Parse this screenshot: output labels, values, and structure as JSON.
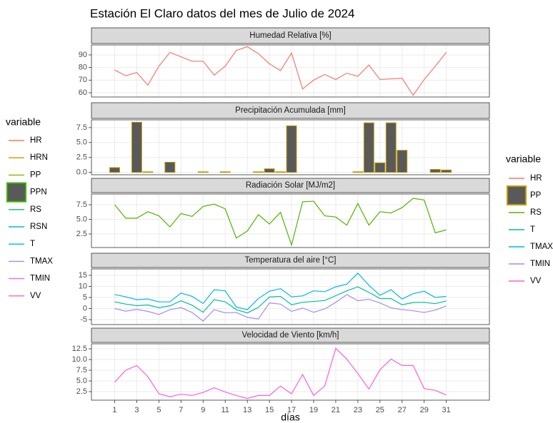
{
  "title": "Estación El Claro datos del mes de Julio de 2024",
  "legends": [
    {
      "title": "variable",
      "entries": [
        {
          "name": "HR",
          "color": "#F8766D",
          "key": "line"
        },
        {
          "name": "HRN",
          "color": "#D89000",
          "key": "line"
        },
        {
          "name": "PP",
          "color": "#A3A500",
          "key": "line"
        },
        {
          "name": "PPN",
          "color": "#39B600",
          "fill": "#595959",
          "key": "box"
        },
        {
          "name": "RS",
          "color": "#00BF7D",
          "key": "line"
        },
        {
          "name": "RSN",
          "color": "#00BFC4",
          "key": "line"
        },
        {
          "name": "T",
          "color": "#00B0F6",
          "key": "line"
        },
        {
          "name": "TMAX",
          "color": "#9590FF",
          "key": "line"
        },
        {
          "name": "TMIN",
          "color": "#E76BF3",
          "key": "line"
        },
        {
          "name": "VV",
          "color": "#FF62BC",
          "key": "line"
        }
      ]
    },
    {
      "title": "variable",
      "entries": [
        {
          "name": "HR",
          "color": "#F8766D",
          "key": "line"
        },
        {
          "name": "PP",
          "color": "#C49A00",
          "fill": "#595959",
          "key": "box"
        },
        {
          "name": "RS",
          "color": "#53B400",
          "key": "line"
        },
        {
          "name": "T",
          "color": "#00C094",
          "key": "line"
        },
        {
          "name": "TMAX",
          "color": "#00B6EB",
          "key": "line"
        },
        {
          "name": "TMIN",
          "color": "#A58AFF",
          "key": "line"
        },
        {
          "name": "VV",
          "color": "#FB61D7",
          "key": "line"
        }
      ]
    }
  ],
  "chart_data": [
    {
      "type": "line",
      "title": "Humedad Relativa [%]",
      "x": [
        1,
        2,
        3,
        4,
        5,
        6,
        7,
        8,
        9,
        10,
        11,
        12,
        13,
        14,
        15,
        16,
        17,
        18,
        19,
        20,
        21,
        22,
        23,
        24,
        25,
        26,
        27,
        28,
        29,
        30,
        31
      ],
      "xlim": [
        -1.1,
        34.9
      ],
      "xticks": [
        1,
        3,
        5,
        7,
        9,
        11,
        13,
        15,
        17,
        19,
        21,
        23,
        25,
        27,
        29,
        31
      ],
      "ylim": [
        56.6,
        97.9
      ],
      "yticks": [
        60,
        70,
        80,
        90
      ],
      "grid": true,
      "series": [
        {
          "name": "HR",
          "color": "#F8766D",
          "values": [
            78,
            73.5,
            76,
            66,
            81,
            92,
            88.5,
            85,
            85,
            74,
            81,
            93.5,
            96.5,
            91,
            83,
            77.5,
            91.5,
            63,
            70,
            74.5,
            70.5,
            75.5,
            73,
            82,
            70.5,
            71,
            71.5,
            58,
            70.5,
            81,
            92
          ]
        }
      ]
    },
    {
      "type": "bar",
      "title": "Precipitación Acumulada [mm]",
      "x": [
        1,
        2,
        3,
        4,
        5,
        6,
        7,
        8,
        9,
        10,
        11,
        12,
        13,
        14,
        15,
        16,
        17,
        18,
        19,
        20,
        21,
        22,
        23,
        24,
        25,
        26,
        27,
        28,
        29,
        30,
        31
      ],
      "xlim": [
        -1.1,
        34.9
      ],
      "xticks": [
        1,
        3,
        5,
        7,
        9,
        11,
        13,
        15,
        17,
        19,
        21,
        23,
        25,
        27,
        29,
        31
      ],
      "ylim": [
        -0.4,
        8.8
      ],
      "yticks": [
        {
          "value": 0,
          "label": "0.0"
        },
        {
          "value": 2.5,
          "label": "2.5"
        },
        {
          "value": 5,
          "label": "5.0"
        },
        {
          "value": 7.5,
          "label": "7.5"
        }
      ],
      "grid": true,
      "series": [
        {
          "name": "PP",
          "color": "#C49A00",
          "fill": "#595959",
          "values": [
            0.8,
            0,
            8.4,
            0.1,
            0,
            1.7,
            0,
            0,
            0.1,
            0,
            0.1,
            0,
            0,
            0.1,
            0.6,
            0.1,
            7.8,
            0,
            0,
            0,
            0,
            0,
            0.1,
            8.3,
            1.6,
            8.3,
            3.7,
            0,
            0,
            0.5,
            0.4
          ]
        }
      ]
    },
    {
      "type": "line",
      "title": "Radiación Solar [MJ/m2]",
      "x": [
        1,
        2,
        3,
        4,
        5,
        6,
        7,
        8,
        9,
        10,
        11,
        12,
        13,
        14,
        15,
        16,
        17,
        18,
        19,
        20,
        21,
        22,
        23,
        24,
        25,
        26,
        27,
        28,
        29,
        30,
        31
      ],
      "xlim": [
        -1.1,
        34.9
      ],
      "xticks": [
        1,
        3,
        5,
        7,
        9,
        11,
        13,
        15,
        17,
        19,
        21,
        23,
        25,
        27,
        29,
        31
      ],
      "ylim": [
        0.18,
        9.33
      ],
      "yticks": [
        2.5,
        {
          "value": 5,
          "label": "5.0"
        },
        7.5
      ],
      "grid": true,
      "series": [
        {
          "name": "RS",
          "color": "#53B400",
          "values": [
            7.5,
            5.2,
            5.2,
            6.3,
            5.6,
            3.7,
            6.0,
            5.5,
            7.2,
            7.6,
            6.8,
            1.8,
            3.0,
            5.8,
            4.2,
            6.2,
            0.6,
            8.0,
            8.1,
            5.6,
            5.4,
            4.0,
            7.7,
            4.0,
            6.3,
            6.1,
            7.0,
            8.6,
            8.3,
            2.7,
            3.2
          ]
        }
      ]
    },
    {
      "type": "line",
      "title": "Temperatura del aire [°C]",
      "x": [
        1,
        2,
        3,
        4,
        5,
        6,
        7,
        8,
        9,
        10,
        11,
        12,
        13,
        14,
        15,
        16,
        17,
        18,
        19,
        20,
        21,
        22,
        23,
        24,
        25,
        26,
        27,
        28,
        29,
        30,
        31
      ],
      "xlim": [
        -1.1,
        34.9
      ],
      "xticks": [
        1,
        3,
        5,
        7,
        9,
        11,
        13,
        15,
        17,
        19,
        21,
        23,
        25,
        27,
        29,
        31
      ],
      "ylim": [
        -7.26,
        17.9
      ],
      "yticks": [
        -5,
        0,
        5,
        10,
        15
      ],
      "grid": true,
      "series": [
        {
          "name": "T",
          "color": "#00C094",
          "values": [
            3,
            2,
            1.3,
            1.6,
            0.4,
            1.2,
            3.5,
            1.5,
            -1.7,
            4,
            3,
            -0.5,
            -2,
            0.5,
            5.2,
            5.5,
            1.7,
            2.8,
            3.2,
            3.6,
            5.8,
            8,
            9.8,
            7.3,
            4.5,
            4.5,
            1.7,
            2.7,
            2.8,
            2.2,
            3.4
          ]
        },
        {
          "name": "TMAX",
          "color": "#00B6EB",
          "values": [
            6.3,
            5.3,
            4,
            4.3,
            3.0,
            3,
            7,
            5.5,
            2.3,
            8.5,
            8,
            0.7,
            -0.5,
            4.5,
            7.8,
            9,
            5.3,
            5.7,
            8,
            7.6,
            9.8,
            11,
            16,
            10.5,
            6,
            8.5,
            4.3,
            6.7,
            7.8,
            5,
            5.5
          ]
        },
        {
          "name": "TMIN",
          "color": "#A58AFF",
          "values": [
            0,
            -1.2,
            -0.4,
            -1.3,
            -2.7,
            -0.5,
            0.4,
            -1.8,
            -5.7,
            -0.5,
            -2,
            -1.8,
            -4,
            -4.7,
            2.5,
            2,
            -1.3,
            0.2,
            -1.7,
            -0.2,
            2.8,
            6.3,
            3.5,
            4.2,
            2.5,
            0.3,
            -0.5,
            -1,
            -1.8,
            -0.7,
            1.2
          ]
        }
      ]
    },
    {
      "type": "line",
      "title": "Velocidad de Viento [km/h]",
      "xlabel": "días",
      "x": [
        1,
        2,
        3,
        4,
        5,
        6,
        7,
        8,
        9,
        10,
        11,
        12,
        13,
        14,
        15,
        16,
        17,
        18,
        19,
        20,
        21,
        22,
        23,
        24,
        25,
        26,
        27,
        28,
        29,
        30,
        31
      ],
      "xlim": [
        -1.1,
        34.9
      ],
      "xticks": [
        1,
        3,
        5,
        7,
        9,
        11,
        13,
        15,
        17,
        19,
        21,
        23,
        25,
        27,
        29,
        31
      ],
      "ylim": [
        0.5,
        13.67
      ],
      "yticks": [
        2.5,
        {
          "value": 5,
          "label": "5.0"
        },
        7.5,
        {
          "value": 10,
          "label": "10.0"
        },
        12.5
      ],
      "grid": true,
      "series": [
        {
          "name": "VV",
          "color": "#FB61D7",
          "values": [
            4.7,
            7.5,
            8.6,
            6,
            2,
            1.3,
            1.9,
            1.6,
            2.3,
            3.4,
            2.4,
            1.6,
            0.9,
            1.6,
            1.6,
            3.8,
            2,
            6.5,
            1.6,
            3.8,
            12.6,
            10.1,
            6.7,
            3.1,
            7.6,
            10.1,
            8.6,
            8.6,
            3.2,
            2.8,
            1.7
          ]
        }
      ]
    }
  ]
}
